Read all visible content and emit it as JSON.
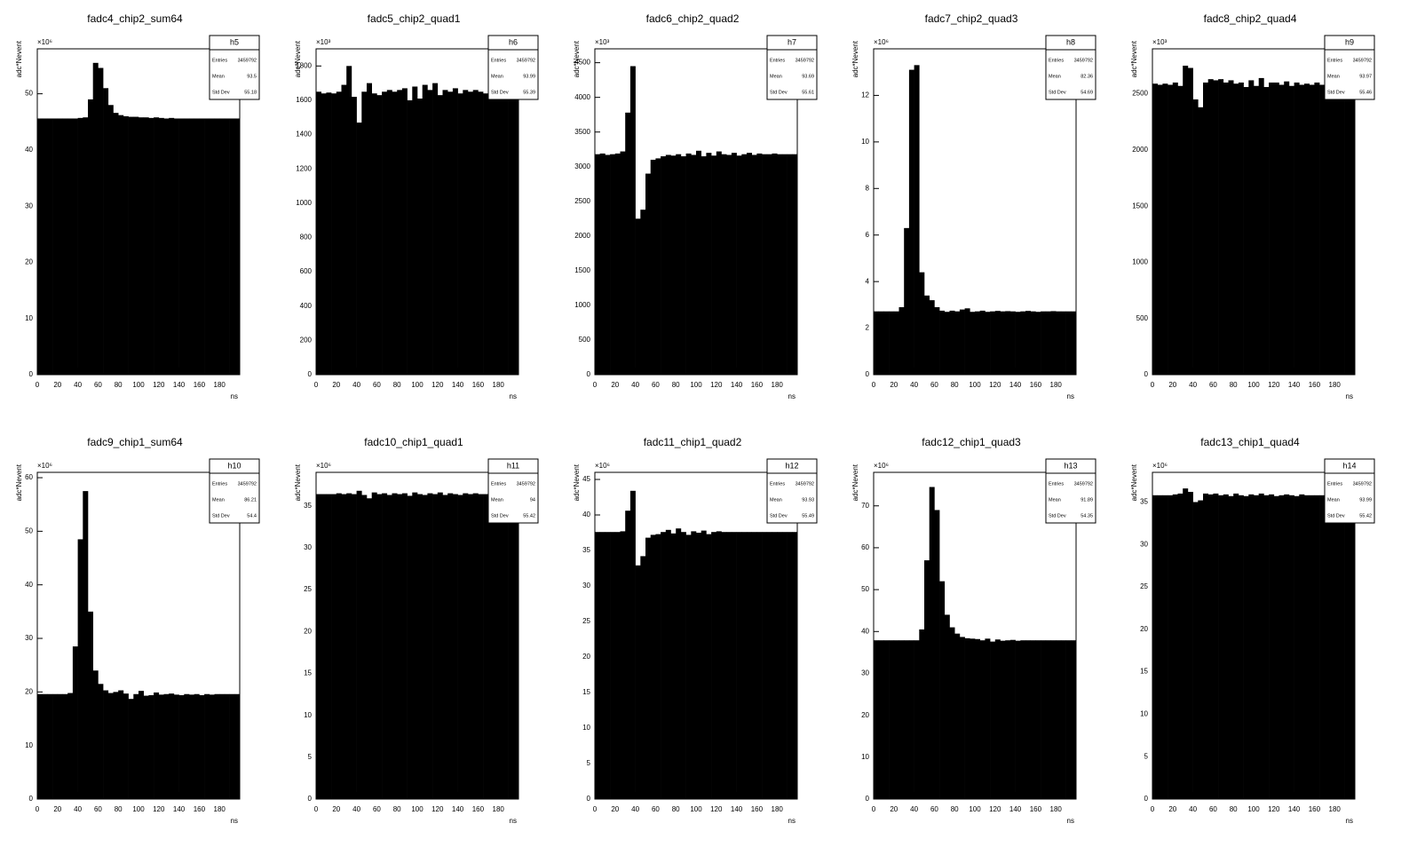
{
  "chart_data": [
    {
      "type": "histogram",
      "title": "fadc4_chip2_sum64",
      "x_label": "ns",
      "y_label": "adc*Nevent",
      "y_exponent": "×10⁶",
      "stats": {
        "name": "h5",
        "labels": [
          "Entries",
          "Mean",
          "Std Dev"
        ],
        "entries": 3459792,
        "mean": 93.5,
        "std_dev": 55.18
      },
      "color": "#000000",
      "xlim": [
        0,
        200
      ],
      "xticks": [
        0,
        20,
        40,
        60,
        80,
        100,
        120,
        140,
        160,
        180
      ],
      "ylim": [
        0,
        58
      ],
      "yticks": [
        0,
        10,
        20,
        30,
        40,
        50
      ],
      "bins": [
        0,
        5,
        10,
        15,
        20,
        25,
        30,
        35,
        40,
        45,
        50,
        55,
        60,
        65,
        70,
        75,
        80,
        85,
        90,
        95,
        100,
        105,
        110,
        115,
        120,
        125,
        130,
        135,
        140,
        145,
        150,
        155,
        160,
        165,
        170,
        175,
        180,
        185,
        190,
        195,
        200
      ],
      "values": [
        45.6,
        45.6,
        45.6,
        45.6,
        45.6,
        45.6,
        45.6,
        45.6,
        45.7,
        45.8,
        49,
        55.5,
        54.6,
        51,
        48,
        46.6,
        46.2,
        46,
        45.9,
        45.9,
        45.8,
        45.8,
        45.7,
        45.8,
        45.7,
        45.6,
        45.7,
        45.6,
        45.6,
        45.6,
        45.6,
        45.6,
        45.6,
        45.6,
        45.6,
        45.6,
        45.6,
        45.6,
        45.6,
        45.6
      ]
    },
    {
      "type": "histogram",
      "title": "fadc5_chip2_quad1",
      "x_label": "ns",
      "y_label": "adc*Nevent",
      "y_exponent": "×10³",
      "stats": {
        "name": "h6",
        "labels": [
          "Entries",
          "Mean",
          "Std Dev"
        ],
        "entries": 3459792,
        "mean": 93.99,
        "std_dev": 55.39
      },
      "color": "#000000",
      "xlim": [
        0,
        200
      ],
      "xticks": [
        0,
        20,
        40,
        60,
        80,
        100,
        120,
        140,
        160,
        180
      ],
      "ylim": [
        0,
        1900
      ],
      "yticks": [
        0,
        200,
        400,
        600,
        800,
        1000,
        1200,
        1400,
        1600,
        1800
      ],
      "bins": [
        0,
        5,
        10,
        15,
        20,
        25,
        30,
        35,
        40,
        45,
        50,
        55,
        60,
        65,
        70,
        75,
        80,
        85,
        90,
        95,
        100,
        105,
        110,
        115,
        120,
        125,
        130,
        135,
        140,
        145,
        150,
        155,
        160,
        165,
        170,
        175,
        180,
        185,
        190,
        195,
        200
      ],
      "values": [
        1650,
        1640,
        1645,
        1640,
        1650,
        1690,
        1800,
        1620,
        1470,
        1650,
        1700,
        1640,
        1630,
        1650,
        1660,
        1650,
        1660,
        1670,
        1600,
        1680,
        1610,
        1690,
        1660,
        1700,
        1630,
        1660,
        1650,
        1670,
        1640,
        1660,
        1650,
        1660,
        1650,
        1640,
        1650,
        1660,
        1650,
        1640,
        1650,
        1650
      ]
    },
    {
      "type": "histogram",
      "title": "fadc6_chip2_quad2",
      "x_label": "ns",
      "y_label": "adc*Nevent",
      "y_exponent": "×10³",
      "stats": {
        "name": "h7",
        "labels": [
          "Entries",
          "Mean",
          "Std Dev"
        ],
        "entries": 3459792,
        "mean": 93.69,
        "std_dev": 55.61
      },
      "color": "#000000",
      "xlim": [
        0,
        200
      ],
      "xticks": [
        0,
        20,
        40,
        60,
        80,
        100,
        120,
        140,
        160,
        180
      ],
      "ylim": [
        0,
        4700
      ],
      "yticks": [
        0,
        500,
        1000,
        1500,
        2000,
        2500,
        3000,
        3500,
        4000,
        4500
      ],
      "bins": [
        0,
        5,
        10,
        15,
        20,
        25,
        30,
        35,
        40,
        45,
        50,
        55,
        60,
        65,
        70,
        75,
        80,
        85,
        90,
        95,
        100,
        105,
        110,
        115,
        120,
        125,
        130,
        135,
        140,
        145,
        150,
        155,
        160,
        165,
        170,
        175,
        180,
        185,
        190,
        195,
        200
      ],
      "values": [
        3180,
        3190,
        3170,
        3180,
        3190,
        3220,
        3780,
        4450,
        2250,
        2380,
        2900,
        3100,
        3120,
        3150,
        3170,
        3160,
        3180,
        3150,
        3190,
        3170,
        3230,
        3150,
        3200,
        3160,
        3220,
        3180,
        3170,
        3200,
        3160,
        3180,
        3200,
        3170,
        3190,
        3180,
        3180,
        3190,
        3180,
        3180,
        3180,
        3180
      ]
    },
    {
      "type": "histogram",
      "title": "fadc7_chip2_quad3",
      "x_label": "ns",
      "y_label": "adc*Nevent",
      "y_exponent": "×10⁶",
      "stats": {
        "name": "h8",
        "labels": [
          "Entries",
          "Mean",
          "Std Dev"
        ],
        "entries": 3459792,
        "mean": 82.36,
        "std_dev": 54.69
      },
      "color": "#000000",
      "xlim": [
        0,
        200
      ],
      "xticks": [
        0,
        20,
        40,
        60,
        80,
        100,
        120,
        140,
        160,
        180
      ],
      "ylim": [
        0,
        14
      ],
      "yticks": [
        0,
        2,
        4,
        6,
        8,
        10,
        12
      ],
      "bins": [
        0,
        5,
        10,
        15,
        20,
        25,
        30,
        35,
        40,
        45,
        50,
        55,
        60,
        65,
        70,
        75,
        80,
        85,
        90,
        95,
        100,
        105,
        110,
        115,
        120,
        125,
        130,
        135,
        140,
        145,
        150,
        155,
        160,
        165,
        170,
        175,
        180,
        185,
        190,
        195,
        200
      ],
      "values": [
        2.72,
        2.72,
        2.72,
        2.72,
        2.72,
        2.9,
        6.3,
        13.1,
        13.3,
        4.4,
        3.4,
        3.2,
        2.9,
        2.75,
        2.7,
        2.75,
        2.72,
        2.8,
        2.85,
        2.7,
        2.72,
        2.75,
        2.7,
        2.72,
        2.74,
        2.72,
        2.73,
        2.72,
        2.7,
        2.72,
        2.74,
        2.72,
        2.7,
        2.72,
        2.72,
        2.73,
        2.72,
        2.72,
        2.72,
        2.72
      ]
    },
    {
      "type": "histogram",
      "title": "fadc8_chip2_quad4",
      "x_label": "ns",
      "y_label": "adc*Nevent",
      "y_exponent": "×10³",
      "stats": {
        "name": "h9",
        "labels": [
          "Entries",
          "Mean",
          "Std Dev"
        ],
        "entries": 3459792,
        "mean": 93.97,
        "std_dev": 55.46
      },
      "color": "#000000",
      "xlim": [
        0,
        200
      ],
      "xticks": [
        0,
        20,
        40,
        60,
        80,
        100,
        120,
        140,
        160,
        180
      ],
      "ylim": [
        0,
        2900
      ],
      "yticks": [
        0,
        500,
        1000,
        1500,
        2000,
        2500
      ],
      "bins": [
        0,
        5,
        10,
        15,
        20,
        25,
        30,
        35,
        40,
        45,
        50,
        55,
        60,
        65,
        70,
        75,
        80,
        85,
        90,
        95,
        100,
        105,
        110,
        115,
        120,
        125,
        130,
        135,
        140,
        145,
        150,
        155,
        160,
        165,
        170,
        175,
        180,
        185,
        190,
        195,
        200
      ],
      "values": [
        2590,
        2580,
        2590,
        2580,
        2600,
        2570,
        2750,
        2730,
        2450,
        2380,
        2600,
        2630,
        2620,
        2630,
        2600,
        2620,
        2590,
        2600,
        2560,
        2620,
        2570,
        2640,
        2560,
        2600,
        2600,
        2580,
        2610,
        2570,
        2600,
        2580,
        2590,
        2580,
        2600,
        2580,
        2590,
        2590,
        2600,
        2590,
        2590,
        2590
      ]
    },
    {
      "type": "histogram",
      "title": "fadc9_chip1_sum64",
      "x_label": "ns",
      "y_label": "adc*Nevent",
      "y_exponent": "×10⁶",
      "stats": {
        "name": "h10",
        "labels": [
          "Entries",
          "Mean",
          "Std Dev"
        ],
        "entries": 3459792,
        "mean": 86.21,
        "std_dev": 54.4
      },
      "color": "#000000",
      "xlim": [
        0,
        200
      ],
      "xticks": [
        0,
        20,
        40,
        60,
        80,
        100,
        120,
        140,
        160,
        180
      ],
      "ylim": [
        0,
        61
      ],
      "yticks": [
        0,
        10,
        20,
        30,
        40,
        50,
        60
      ],
      "bins": [
        0,
        5,
        10,
        15,
        20,
        25,
        30,
        35,
        40,
        45,
        50,
        55,
        60,
        65,
        70,
        75,
        80,
        85,
        90,
        95,
        100,
        105,
        110,
        115,
        120,
        125,
        130,
        135,
        140,
        145,
        150,
        155,
        160,
        165,
        170,
        175,
        180,
        185,
        190,
        195,
        200
      ],
      "values": [
        19.6,
        19.6,
        19.6,
        19.6,
        19.6,
        19.6,
        19.8,
        28.5,
        48.5,
        57.5,
        35,
        24,
        21.5,
        20.3,
        19.8,
        20,
        20.3,
        19.7,
        18.7,
        19.6,
        20.2,
        19.3,
        19.4,
        19.9,
        19.5,
        19.6,
        19.7,
        19.5,
        19.4,
        19.6,
        19.5,
        19.6,
        19.4,
        19.6,
        19.5,
        19.6,
        19.6,
        19.6,
        19.6,
        19.6
      ]
    },
    {
      "type": "histogram",
      "title": "fadc10_chip1_quad1",
      "x_label": "ns",
      "y_label": "adc*Nevent",
      "y_exponent": "×10⁶",
      "stats": {
        "name": "h11",
        "labels": [
          "Entries",
          "Mean",
          "Std Dev"
        ],
        "entries": 3459792,
        "mean": 94,
        "std_dev": 55.42
      },
      "color": "#000000",
      "xlim": [
        0,
        200
      ],
      "xticks": [
        0,
        20,
        40,
        60,
        80,
        100,
        120,
        140,
        160,
        180
      ],
      "ylim": [
        0,
        39
      ],
      "yticks": [
        0,
        5,
        10,
        15,
        20,
        25,
        30,
        35
      ],
      "bins": [
        0,
        5,
        10,
        15,
        20,
        25,
        30,
        35,
        40,
        45,
        50,
        55,
        60,
        65,
        70,
        75,
        80,
        85,
        90,
        95,
        100,
        105,
        110,
        115,
        120,
        125,
        130,
        135,
        140,
        145,
        150,
        155,
        160,
        165,
        170,
        175,
        180,
        185,
        190,
        195,
        200
      ],
      "values": [
        36.4,
        36.4,
        36.4,
        36.4,
        36.5,
        36.4,
        36.5,
        36.4,
        36.8,
        36.3,
        35.9,
        36.6,
        36.4,
        36.5,
        36.3,
        36.5,
        36.4,
        36.5,
        36.2,
        36.6,
        36.4,
        36.3,
        36.5,
        36.4,
        36.6,
        36.3,
        36.5,
        36.4,
        36.3,
        36.5,
        36.4,
        36.5,
        36.4,
        36.4,
        36.4,
        36.4,
        36.4,
        36.4,
        36.4,
        36.4
      ]
    },
    {
      "type": "histogram",
      "title": "fadc11_chip1_quad2",
      "x_label": "ns",
      "y_label": "adc*Nevent",
      "y_exponent": "×10⁶",
      "stats": {
        "name": "h12",
        "labels": [
          "Entries",
          "Mean",
          "Std Dev"
        ],
        "entries": 3459792,
        "mean": 93.93,
        "std_dev": 55.49
      },
      "color": "#000000",
      "xlim": [
        0,
        200
      ],
      "xticks": [
        0,
        20,
        40,
        60,
        80,
        100,
        120,
        140,
        160,
        180
      ],
      "ylim": [
        0,
        46
      ],
      "yticks": [
        0,
        5,
        10,
        15,
        20,
        25,
        30,
        35,
        40,
        45
      ],
      "bins": [
        0,
        5,
        10,
        15,
        20,
        25,
        30,
        35,
        40,
        45,
        50,
        55,
        60,
        65,
        70,
        75,
        80,
        85,
        90,
        95,
        100,
        105,
        110,
        115,
        120,
        125,
        130,
        135,
        140,
        145,
        150,
        155,
        160,
        165,
        170,
        175,
        180,
        185,
        190,
        195,
        200
      ],
      "values": [
        37.6,
        37.6,
        37.6,
        37.6,
        37.6,
        37.7,
        40.6,
        43.4,
        32.9,
        34.2,
        36.8,
        37.2,
        37.3,
        37.6,
        37.9,
        37.4,
        38.1,
        37.6,
        37.2,
        37.7,
        37.5,
        37.8,
        37.3,
        37.6,
        37.7,
        37.6,
        37.6,
        37.6,
        37.6,
        37.6,
        37.6,
        37.6,
        37.6,
        37.6,
        37.6,
        37.6,
        37.6,
        37.6,
        37.6,
        37.6
      ]
    },
    {
      "type": "histogram",
      "title": "fadc12_chip1_quad3",
      "x_label": "ns",
      "y_label": "adc*Nevent",
      "y_exponent": "×10⁶",
      "stats": {
        "name": "h13",
        "labels": [
          "Entries",
          "Mean",
          "Std Dev"
        ],
        "entries": 3459792,
        "mean": 91.89,
        "std_dev": 54.35
      },
      "color": "#000000",
      "xlim": [
        0,
        200
      ],
      "xticks": [
        0,
        20,
        40,
        60,
        80,
        100,
        120,
        140,
        160,
        180
      ],
      "ylim": [
        0,
        78
      ],
      "yticks": [
        0,
        10,
        20,
        30,
        40,
        50,
        60,
        70
      ],
      "bins": [
        0,
        5,
        10,
        15,
        20,
        25,
        30,
        35,
        40,
        45,
        50,
        55,
        60,
        65,
        70,
        75,
        80,
        85,
        90,
        95,
        100,
        105,
        110,
        115,
        120,
        125,
        130,
        135,
        140,
        145,
        150,
        155,
        160,
        165,
        170,
        175,
        180,
        185,
        190,
        195,
        200
      ],
      "values": [
        37.9,
        37.9,
        37.9,
        37.9,
        37.9,
        37.9,
        37.9,
        37.9,
        37.9,
        40.5,
        57,
        74.5,
        69,
        52,
        44,
        41,
        39.5,
        38.7,
        38.4,
        38.3,
        38.2,
        37.9,
        38.3,
        37.6,
        38.1,
        37.8,
        37.9,
        38,
        37.8,
        37.9,
        37.9,
        37.9,
        37.9,
        37.9,
        37.9,
        37.9,
        37.9,
        37.9,
        37.9,
        37.9
      ]
    },
    {
      "type": "histogram",
      "title": "fadc13_chip1_quad4",
      "x_label": "ns",
      "y_label": "adc*Nevent",
      "y_exponent": "×10⁶",
      "stats": {
        "name": "h14",
        "labels": [
          "Entries",
          "Mean",
          "Std Dev"
        ],
        "entries": 3459792,
        "mean": 93.99,
        "std_dev": 55.42
      },
      "color": "#000000",
      "xlim": [
        0,
        200
      ],
      "xticks": [
        0,
        20,
        40,
        60,
        80,
        100,
        120,
        140,
        160,
        180
      ],
      "ylim": [
        0,
        38.5
      ],
      "yticks": [
        0,
        5,
        10,
        15,
        20,
        25,
        30,
        35
      ],
      "bins": [
        0,
        5,
        10,
        15,
        20,
        25,
        30,
        35,
        40,
        45,
        50,
        55,
        60,
        65,
        70,
        75,
        80,
        85,
        90,
        95,
        100,
        105,
        110,
        115,
        120,
        125,
        130,
        135,
        140,
        145,
        150,
        155,
        160,
        165,
        170,
        175,
        180,
        185,
        190,
        195,
        200
      ],
      "values": [
        35.8,
        35.8,
        35.8,
        35.8,
        35.9,
        36,
        36.6,
        36.2,
        35,
        35.2,
        36,
        35.9,
        36,
        35.8,
        35.9,
        35.7,
        36,
        35.8,
        35.7,
        35.9,
        35.8,
        36,
        35.8,
        35.9,
        35.7,
        35.8,
        35.9,
        35.8,
        35.7,
        35.9,
        35.8,
        35.8,
        35.8,
        35.8,
        35.8,
        35.8,
        35.8,
        35.8,
        35.8,
        35.8
      ]
    }
  ]
}
